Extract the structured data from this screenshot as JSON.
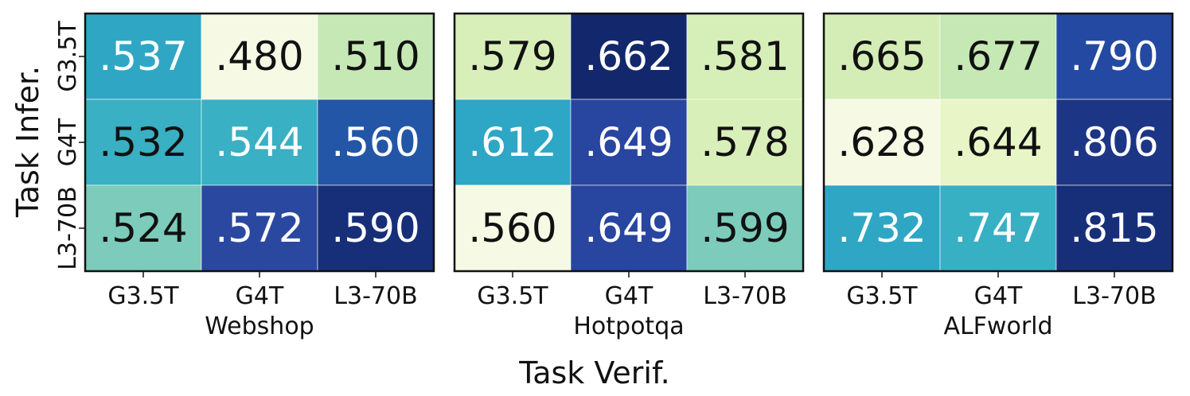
{
  "chart_data": {
    "type": "heatmap",
    "ylabel": "Task Infer.",
    "xlabel": "Task Verif.",
    "row_labels": [
      "G3.5T",
      "G4T",
      "L3-70B"
    ],
    "col_labels": [
      "G3.5T",
      "G4T",
      "L3-70B"
    ],
    "value_prefix_format": "drop leading zero, 3 decimals",
    "colormap": "YlGnBu",
    "panels": [
      {
        "title": "Webshop",
        "values": [
          [
            0.537,
            0.48,
            0.51
          ],
          [
            0.532,
            0.544,
            0.56
          ],
          [
            0.524,
            0.572,
            0.59
          ]
        ],
        "labels": [
          [
            ".537",
            ".480",
            ".510"
          ],
          [
            ".532",
            ".544",
            ".560"
          ],
          [
            ".524",
            ".572",
            ".590"
          ]
        ],
        "colors": [
          [
            "#2fa7c4",
            "#f6f9e4",
            "#c6e8b4"
          ],
          [
            "#39b0c3",
            "#39b0c3",
            "#2356a6"
          ],
          [
            "#7ccbbb",
            "#2b48a0",
            "#172f79"
          ]
        ],
        "text_colors": [
          [
            "#ffffff",
            "#111111",
            "#111111"
          ],
          [
            "#111111",
            "#ffffff",
            "#ffffff"
          ],
          [
            "#111111",
            "#ffffff",
            "#ffffff"
          ]
        ]
      },
      {
        "title": "Hotpotqa",
        "values": [
          [
            0.579,
            0.662,
            0.581
          ],
          [
            0.612,
            0.649,
            0.578
          ],
          [
            0.56,
            0.649,
            0.599
          ]
        ],
        "labels": [
          [
            ".579",
            ".662",
            ".581"
          ],
          [
            ".612",
            ".649",
            ".578"
          ],
          [
            ".560",
            ".649",
            ".599"
          ]
        ],
        "colors": [
          [
            "#d8efb9",
            "#13286c",
            "#d6eeb8"
          ],
          [
            "#2ea6c5",
            "#2845a0",
            "#d8efb9"
          ],
          [
            "#f6f9e4",
            "#2845a0",
            "#7ccbbb"
          ]
        ],
        "text_colors": [
          [
            "#111111",
            "#ffffff",
            "#111111"
          ],
          [
            "#ffffff",
            "#ffffff",
            "#111111"
          ],
          [
            "#111111",
            "#ffffff",
            "#111111"
          ]
        ]
      },
      {
        "title": "ALFworld",
        "values": [
          [
            0.665,
            0.677,
            0.79
          ],
          [
            0.628,
            0.644,
            0.806
          ],
          [
            0.732,
            0.747,
            0.815
          ]
        ],
        "labels": [
          [
            ".665",
            ".677",
            ".790"
          ],
          [
            ".628",
            ".644",
            ".806"
          ],
          [
            ".732",
            ".747",
            ".815"
          ]
        ],
        "colors": [
          [
            "#d4edb6",
            "#c6e8b4",
            "#2449a2"
          ],
          [
            "#f6f9e4",
            "#e8f5c6",
            "#1d3585"
          ],
          [
            "#2fa7c4",
            "#38b0c4",
            "#172f79"
          ]
        ],
        "text_colors": [
          [
            "#111111",
            "#111111",
            "#ffffff"
          ],
          [
            "#111111",
            "#111111",
            "#ffffff"
          ],
          [
            "#ffffff",
            "#ffffff",
            "#ffffff"
          ]
        ]
      }
    ]
  }
}
